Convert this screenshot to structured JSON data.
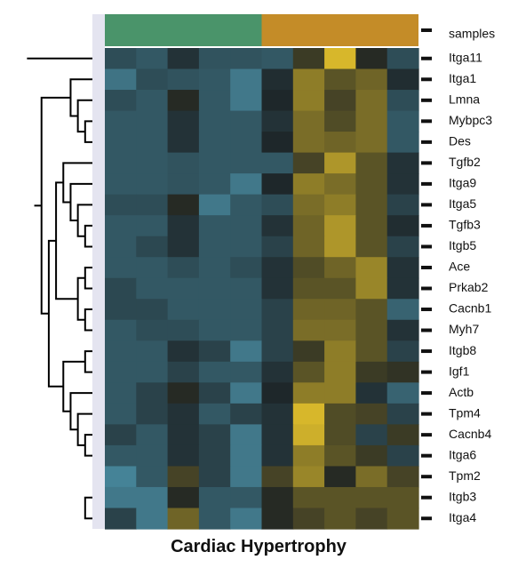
{
  "chart_data": {
    "type": "heatmap",
    "title": "Cardiac Hypertrophy",
    "annotation_label": "samples",
    "sample_groups": [
      {
        "color": "#4a946a",
        "count": 5
      },
      {
        "color": "#c48c28",
        "count": 5
      }
    ],
    "rows": [
      "Itga11",
      "Itga1",
      "Lmna",
      "Mybpc3",
      "Des",
      "Tgfb2",
      "Itga9",
      "Itga5",
      "Tgfb3",
      "Itgb5",
      "Ace",
      "Prkab2",
      "Cacnb1",
      "Myh7",
      "Itgb8",
      "Igf1",
      "Actb",
      "Tpm4",
      "Cacnb4",
      "Itga6",
      "Tpm2",
      "Itgb3",
      "Itga4"
    ],
    "value_range": [
      -2,
      2
    ],
    "colors": {
      "low": "#4a8ea4",
      "mid": "#1c2224",
      "high": "#ecc82c",
      "background": "#2a4a57",
      "sidebar": "#e4e4f0"
    },
    "matrix": [
      [
        -0.8,
        -1.0,
        -0.3,
        -0.9,
        -0.9,
        -1.0,
        0.3,
        1.8,
        0.1,
        -0.8
      ],
      [
        -1.5,
        -0.8,
        -0.9,
        -1.0,
        -1.6,
        -0.2,
        1.1,
        0.6,
        0.8,
        -0.2
      ],
      [
        -0.8,
        -1.0,
        0.1,
        -1.0,
        -1.6,
        -0.1,
        1.1,
        0.4,
        0.9,
        -0.8
      ],
      [
        -1.0,
        -1.0,
        -0.3,
        -1.0,
        -1.0,
        -0.3,
        0.9,
        0.5,
        0.9,
        -1.0
      ],
      [
        -1.0,
        -1.0,
        -0.3,
        -1.0,
        -1.0,
        -0.1,
        0.9,
        0.8,
        0.9,
        -1.0
      ],
      [
        -1.0,
        -1.0,
        -0.9,
        -1.0,
        -1.0,
        -1.0,
        0.4,
        1.4,
        0.6,
        -0.3
      ],
      [
        -1.0,
        -1.0,
        -0.9,
        -1.0,
        -1.6,
        -0.1,
        1.1,
        0.9,
        0.6,
        -0.3
      ],
      [
        -0.8,
        -0.8,
        0.1,
        -1.6,
        -1.0,
        -0.8,
        0.9,
        1.1,
        0.6,
        -0.6
      ],
      [
        -1.0,
        -1.0,
        -0.3,
        -1.0,
        -1.0,
        -0.3,
        0.8,
        1.4,
        0.6,
        -0.2
      ],
      [
        -1.0,
        -0.7,
        -0.3,
        -1.0,
        -1.0,
        -0.6,
        0.8,
        1.4,
        0.6,
        -0.6
      ],
      [
        -1.0,
        -1.0,
        -0.8,
        -1.0,
        -0.8,
        -0.3,
        0.5,
        0.8,
        1.2,
        -0.3
      ],
      [
        -0.7,
        -1.0,
        -1.0,
        -1.0,
        -1.0,
        -0.3,
        0.6,
        0.6,
        1.2,
        -0.3
      ],
      [
        -0.7,
        -0.7,
        -1.0,
        -1.0,
        -1.0,
        -0.6,
        0.8,
        0.8,
        0.6,
        -1.2
      ],
      [
        -1.0,
        -0.8,
        -0.8,
        -1.0,
        -1.0,
        -0.6,
        0.9,
        0.9,
        0.6,
        -0.3
      ],
      [
        -1.0,
        -1.0,
        -0.3,
        -0.6,
        -1.6,
        -0.6,
        0.3,
        1.1,
        0.6,
        -0.6
      ],
      [
        -1.0,
        -1.0,
        -0.6,
        -1.0,
        -1.0,
        -0.3,
        0.6,
        1.1,
        0.3,
        0.2
      ],
      [
        -1.0,
        -0.6,
        0.1,
        -0.6,
        -1.6,
        -0.1,
        1.1,
        1.1,
        -0.3,
        -1.2
      ],
      [
        -1.0,
        -0.6,
        -0.3,
        -1.0,
        -0.6,
        -0.3,
        1.8,
        0.5,
        0.4,
        -0.6
      ],
      [
        -0.6,
        -1.0,
        -0.3,
        -0.6,
        -1.6,
        -0.3,
        1.7,
        0.5,
        -0.6,
        0.3
      ],
      [
        -1.0,
        -1.0,
        -0.3,
        -0.6,
        -1.6,
        -0.3,
        1.1,
        0.6,
        0.3,
        -0.6
      ],
      [
        -1.8,
        -1.0,
        0.4,
        -0.6,
        -1.6,
        0.4,
        1.2,
        0.1,
        0.9,
        0.4
      ],
      [
        -1.6,
        -1.6,
        0.1,
        -1.0,
        -1.0,
        0.1,
        0.6,
        0.6,
        0.6,
        0.6
      ],
      [
        -0.6,
        -1.6,
        0.8,
        -1.0,
        -1.6,
        0.1,
        0.4,
        0.6,
        0.4,
        0.6
      ]
    ]
  }
}
